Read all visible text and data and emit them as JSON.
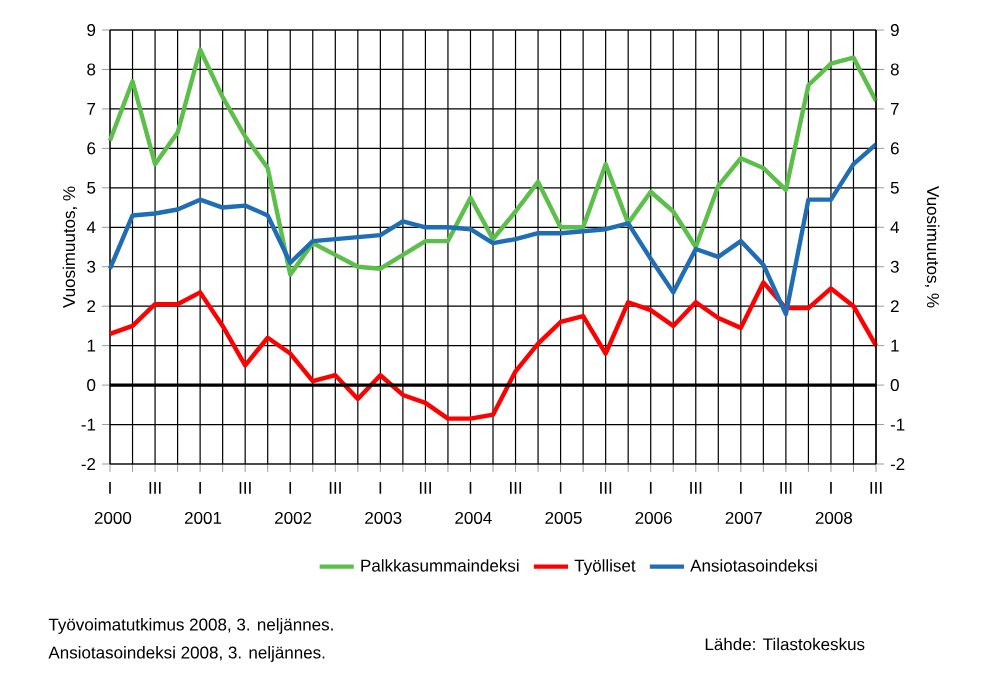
{
  "chart_data": {
    "type": "line",
    "ylabel": "Vuosimuutos, %",
    "y2label": "Vuosimuutos, %",
    "categories": [
      "I 2000",
      null,
      "III",
      null,
      "I 2001",
      null,
      "III",
      null,
      "I 2002",
      null,
      "III",
      null,
      "I 2003",
      null,
      "III",
      null,
      "I 2004",
      null,
      "III",
      null,
      "I 2005",
      null,
      "III",
      null,
      "I 2006",
      null,
      "III",
      null,
      "I 2007",
      null,
      "III",
      null,
      "I 2008",
      null,
      "III"
    ],
    "series": [
      {
        "name": "Palkkasummaindeksi",
        "color": "#5cbf4a",
        "values": [
          6.2,
          7.7,
          5.6,
          6.4,
          8.5,
          7.3,
          6.3,
          5.5,
          2.8,
          3.6,
          3.3,
          3.0,
          2.95,
          3.3,
          3.65,
          3.65,
          4.75,
          3.7,
          4.4,
          5.15,
          4.0,
          4.0,
          5.6,
          4.1,
          4.9,
          4.4,
          3.5,
          5.05,
          5.75,
          5.5,
          4.95,
          7.6,
          8.15,
          8.3,
          7.2
        ]
      },
      {
        "name": "Työlliset",
        "color": "#ff0000",
        "values": [
          1.3,
          1.5,
          2.05,
          2.05,
          2.35,
          1.5,
          0.5,
          1.2,
          0.8,
          0.1,
          0.25,
          -0.35,
          0.25,
          -0.25,
          -0.45,
          -0.85,
          -0.85,
          -0.75,
          0.35,
          1.05,
          1.6,
          1.75,
          0.8,
          2.1,
          1.9,
          1.5,
          2.1,
          1.7,
          1.45,
          2.6,
          1.95,
          1.95,
          2.45,
          2.0,
          1.0
        ]
      },
      {
        "name": "Ansiotasoindeksi",
        "color": "#1f6db5",
        "values": [
          2.95,
          4.3,
          4.35,
          4.45,
          4.7,
          4.5,
          4.55,
          4.3,
          3.1,
          3.65,
          3.7,
          3.75,
          3.8,
          4.15,
          4.0,
          4.0,
          3.95,
          3.6,
          3.7,
          3.85,
          3.85,
          3.9,
          3.95,
          4.1,
          3.2,
          2.35,
          3.45,
          3.25,
          3.65,
          3.05,
          1.8,
          4.7,
          4.7,
          5.6,
          6.1
        ]
      }
    ],
    "ylim": [
      -2,
      9
    ],
    "yticks": [
      -2,
      -1,
      0,
      1,
      2,
      3,
      4,
      5,
      6,
      7,
      8,
      9
    ],
    "y2lim": [
      -2,
      9
    ],
    "y2ticks": [
      -2,
      -1,
      0,
      1,
      2,
      3,
      4,
      5,
      6,
      7,
      8,
      9
    ],
    "ref_lines": [
      {
        "axis": "y",
        "value": 0,
        "color": "#000000"
      }
    ],
    "annotations": [
      "Työvoimatutkimus 2008, 3. neljännes.",
      "Ansiotasoindeksi 2008, 3. neljännes.",
      "Lähde: Tilastokeskus"
    ],
    "grid": true,
    "legend": "bottom",
    "marker": "none",
    "line_style": "solid"
  }
}
